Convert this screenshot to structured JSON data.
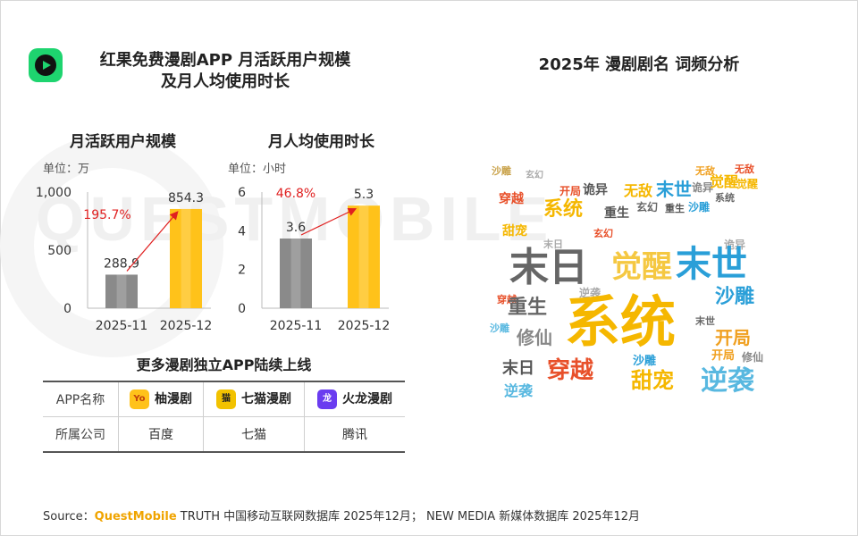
{
  "header": {
    "title_left_line1": "红果免费漫剧APP 月活跃用户规模",
    "title_left_line2": "及月人均使用时长",
    "title_right": "2025年 漫剧剧名 词频分析"
  },
  "watermark": "QUESTMOBILE",
  "colors": {
    "bar_gray": "#8a8a8a",
    "bar_yellow": "#ffc21a",
    "growth_red": "#e02020",
    "accent_orange": "#f0a400"
  },
  "chart_data": [
    {
      "type": "bar",
      "title": "月活跃用户规模",
      "unit": "单位：万",
      "categories": [
        "2025-11",
        "2025-12"
      ],
      "values": [
        288.9,
        854.3
      ],
      "value_labels": [
        "288.9",
        "854.3"
      ],
      "y_ticks": [
        "1,000",
        "500",
        "0"
      ],
      "ylim": [
        0,
        1000
      ],
      "growth_label": "195.7%"
    },
    {
      "type": "bar",
      "title": "月人均使用时长",
      "unit": "单位：小时",
      "categories": [
        "2025-11",
        "2025-12"
      ],
      "values": [
        3.6,
        5.3
      ],
      "value_labels": [
        "3.6",
        "5.3"
      ],
      "y_ticks": [
        "6",
        "4",
        "2",
        "0"
      ],
      "ylim": [
        0,
        6
      ],
      "growth_label": "46.8%"
    }
  ],
  "apps_section": {
    "title": "更多漫剧独立APP陆续上线",
    "row_label_name": "APP名称",
    "row_label_company": "所属公司",
    "apps": [
      {
        "name": "柚漫剧",
        "company": "百度",
        "icon_text": "Yo",
        "icon_color": "#ffc21a"
      },
      {
        "name": "七猫漫剧",
        "company": "七猫",
        "icon_text": "猫",
        "icon_color": "#f2c200"
      },
      {
        "name": "火龙漫剧",
        "company": "腾讯",
        "icon_text": "龙",
        "icon_color": "#6a3cf0"
      }
    ]
  },
  "word_cloud": {
    "words": [
      {
        "text": "系统",
        "color": "#f5b700"
      },
      {
        "text": "末日",
        "color": "#666666"
      },
      {
        "text": "末世",
        "color": "#2a9fd8"
      },
      {
        "text": "觉醒",
        "color": "#f5c842"
      },
      {
        "text": "穿越",
        "color": "#e8502a"
      },
      {
        "text": "逆袭",
        "color": "#58b8e0"
      },
      {
        "text": "甜宠",
        "color": "#f5b700"
      },
      {
        "text": "沙雕",
        "color": "#2a9fd8"
      },
      {
        "text": "重生",
        "color": "#666666"
      },
      {
        "text": "修仙",
        "color": "#888888"
      },
      {
        "text": "开局",
        "color": "#f0a020"
      },
      {
        "text": "无敌",
        "color": "#f5b700"
      },
      {
        "text": "玄幻",
        "color": "#999999"
      },
      {
        "text": "诡异",
        "color": "#666666"
      }
    ]
  },
  "source": {
    "prefix": "Source：",
    "brand": "QuestMobile",
    "text": " TRUTH 中国移动互联网数据库 2025年12月； NEW MEDIA 新媒体数据库 2025年12月"
  }
}
